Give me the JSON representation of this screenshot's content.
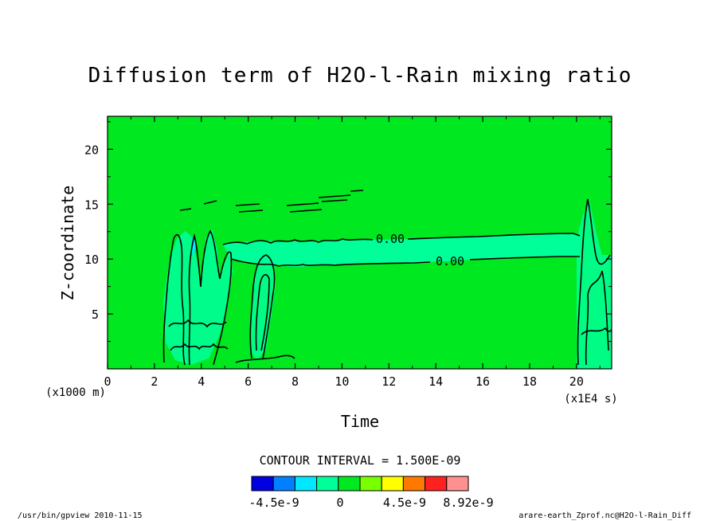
{
  "chart_data": {
    "type": "heatmap",
    "title": "Diffusion term of H2O-l-Rain mixing ratio",
    "xlabel": "Time",
    "ylabel": "Z-coordinate",
    "x_unit": "(x1E4 s)",
    "y_unit": "(x1000 m)",
    "xlim": [
      0,
      21.5
    ],
    "ylim": [
      0,
      23
    ],
    "x_ticks": [
      0,
      2,
      4,
      6,
      8,
      10,
      12,
      14,
      16,
      18,
      20
    ],
    "y_ticks": [
      5,
      10,
      15,
      20
    ],
    "background_value": 0,
    "contour_labels": [
      "0.00",
      "0.00"
    ],
    "contour_interval": "CONTOUR INTERVAL = 1.500E-09",
    "colorbar": {
      "colors": [
        "#0000e0",
        "#0080ff",
        "#00e8ff",
        "#00ff98",
        "#00e820",
        "#78ff00",
        "#ffff00",
        "#ff7800",
        "#ff2020",
        "#ff9090"
      ],
      "tick_labels": [
        "-4.5e-9",
        "0",
        "4.5e-9",
        "8.92e-9"
      ]
    },
    "grid": false,
    "legend": "colorbar bottom-center"
  },
  "footer": {
    "left": "/usr/bin/gpview  2010-11-15",
    "right": "arare-earth_Zprof.nc@H2O-l-Rain_Diff"
  }
}
